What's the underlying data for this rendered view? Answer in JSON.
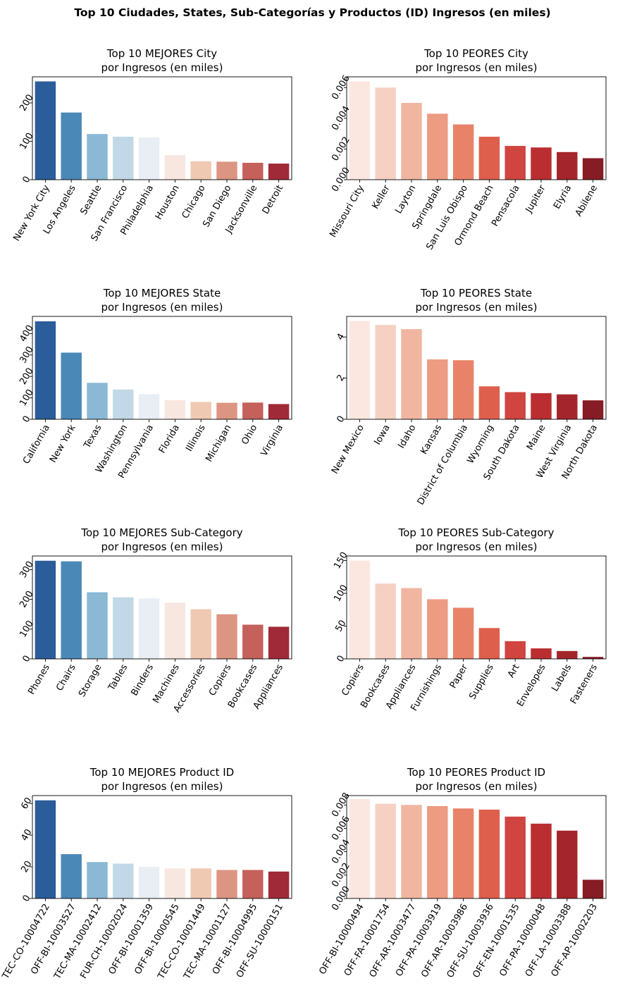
{
  "figure": {
    "suptitle": "Top 10 Ciudades, States, Sub-Categorías y Productos (ID) Ingresos (en miles)"
  },
  "palettes": {
    "best": [
      "#2a5d9a",
      "#4a88b7",
      "#8ab8d5",
      "#c2d8e6",
      "#e8eef3",
      "#f8e7e0",
      "#f0c9b3",
      "#dc9583",
      "#c3615a",
      "#a02a38"
    ],
    "worst": [
      "#fce7e0",
      "#f6d0c3",
      "#f0b6a2",
      "#ec9c82",
      "#e8836a",
      "#de5f4c",
      "#d04540",
      "#ba2e31",
      "#a4252b",
      "#861c25"
    ]
  },
  "chart_data": [
    {
      "type": "bar",
      "title": "Top 10 MEJORES City\npor Ingresos (en miles)",
      "palette": "best",
      "categories": [
        "New York City",
        "Los Angeles",
        "Seattle",
        "San Francisco",
        "Philadelphia",
        "Houston",
        "Chicago",
        "San Diego",
        "Jacksonville",
        "Detroit"
      ],
      "values": [
        256,
        175,
        119,
        112,
        110,
        64,
        48,
        47,
        44,
        42
      ],
      "ylim": [
        0,
        268
      ],
      "yticks": [
        0,
        100,
        200
      ],
      "ytick_labels": [
        "0",
        "100",
        "200"
      ]
    },
    {
      "type": "bar",
      "title": "Top 10 PEORES City\npor Ingresos (en miles)",
      "palette": "worst",
      "categories": [
        "Missouri City",
        "Keller",
        "Layton",
        "Springdale",
        "San Luis Obispo",
        "Ormond Beach",
        "Pensacola",
        "Jupiter",
        "Elyria",
        "Abilene"
      ],
      "values": [
        0.0064,
        0.006,
        0.005,
        0.0043,
        0.0036,
        0.0028,
        0.0022,
        0.0021,
        0.0018,
        0.0014
      ],
      "ylim": [
        0,
        0.0067
      ],
      "yticks": [
        0,
        0.002,
        0.004,
        0.006
      ],
      "ytick_labels": [
        "0.000",
        "0.002",
        "0.004",
        "0.006"
      ]
    },
    {
      "type": "bar",
      "title": "Top 10 MEJORES State\npor Ingresos (en miles)",
      "palette": "best",
      "categories": [
        "California",
        "New York",
        "Texas",
        "Washington",
        "Pennsylvania",
        "Florida",
        "Illinois",
        "Michigan",
        "Ohio",
        "Virginia"
      ],
      "values": [
        457,
        311,
        170,
        139,
        117,
        89,
        81,
        77,
        78,
        71
      ],
      "ylim": [
        0,
        480
      ],
      "yticks": [
        0,
        100,
        200,
        300,
        400
      ],
      "ytick_labels": [
        "0",
        "100",
        "200",
        "300",
        "400"
      ]
    },
    {
      "type": "bar",
      "title": "Top 10 PEORES State\npor Ingresos (en miles)",
      "palette": "worst",
      "categories": [
        "New Mexico",
        "Iowa",
        "Idaho",
        "Kansas",
        "District of Columbia",
        "Wyoming",
        "South Dakota",
        "Maine",
        "West Virginia",
        "North Dakota"
      ],
      "values": [
        4.78,
        4.58,
        4.38,
        2.91,
        2.87,
        1.6,
        1.32,
        1.27,
        1.21,
        0.92
      ],
      "ylim": [
        0,
        5.0
      ],
      "yticks": [
        0,
        2,
        4
      ],
      "ytick_labels": [
        "0",
        "2",
        "4"
      ]
    },
    {
      "type": "bar",
      "title": "Top 10 MEJORES Sub-Category\npor Ingresos (en miles)",
      "palette": "best",
      "categories": [
        "Phones",
        "Chairs",
        "Storage",
        "Tables",
        "Binders",
        "Machines",
        "Accessories",
        "Copiers",
        "Bookcases",
        "Appliances"
      ],
      "values": [
        330,
        328,
        224,
        207,
        203,
        189,
        167,
        150,
        115,
        108
      ],
      "ylim": [
        0,
        346
      ],
      "yticks": [
        0,
        100,
        200,
        300
      ],
      "ytick_labels": [
        "0",
        "100",
        "200",
        "300"
      ]
    },
    {
      "type": "bar",
      "title": "Top 10 PEORES Sub-Category\npor Ingresos (en miles)",
      "palette": "worst",
      "categories": [
        "Copiers",
        "Bookcases",
        "Appliances",
        "Furnishings",
        "Paper",
        "Supplies",
        "Art",
        "Envelopes",
        "Labels",
        "Fasteners"
      ],
      "values": [
        150,
        115,
        108,
        91,
        78,
        47,
        27,
        16,
        12,
        3
      ],
      "ylim": [
        0,
        157
      ],
      "yticks": [
        0,
        50,
        100,
        150
      ],
      "ytick_labels": [
        "0",
        "50",
        "100",
        "150"
      ]
    },
    {
      "type": "bar",
      "title": "Top 10 MEJORES Product ID\npor Ingresos (en miles)",
      "palette": "best",
      "categories": [
        "TEC-CO-10004722",
        "OFF-BI-10003527",
        "TEC-MA-10002412",
        "FUR-CH-10002024",
        "OFF-BI-10001359",
        "OFF-BI-10000545",
        "TEC-CO-10001449",
        "TEC-MA-10001127",
        "OFF-BI-10004995",
        "OFF-SU-10000151"
      ],
      "values": [
        62,
        28,
        23,
        22,
        20,
        19,
        19,
        18,
        18,
        17
      ],
      "ylim": [
        0,
        65
      ],
      "yticks": [
        0,
        20,
        40,
        60
      ],
      "ytick_labels": [
        "0",
        "20",
        "40",
        "60"
      ]
    },
    {
      "type": "bar",
      "title": "Top 10 PEORES Product ID\npor Ingresos (en miles)",
      "palette": "worst",
      "categories": [
        "OFF-BI-10000494",
        "OFF-FA-10001754",
        "OFF-AR-10003477",
        "OFF-PA-10003919",
        "OFF-AR-10003986",
        "OFF-SU-10003936",
        "OFF-EN-10001535",
        "OFF-PA-10000048",
        "OFF-LA-10003388",
        "OFF-AP-10002203"
      ],
      "values": [
        0.0085,
        0.0081,
        0.008,
        0.0079,
        0.0077,
        0.0076,
        0.007,
        0.0064,
        0.0058,
        0.0016
      ],
      "ylim": [
        0,
        0.0088
      ],
      "yticks": [
        0,
        0.002,
        0.004,
        0.006,
        0.008
      ],
      "ytick_labels": [
        "0.000",
        "0.002",
        "0.004",
        "0.006",
        "0.008"
      ]
    }
  ]
}
